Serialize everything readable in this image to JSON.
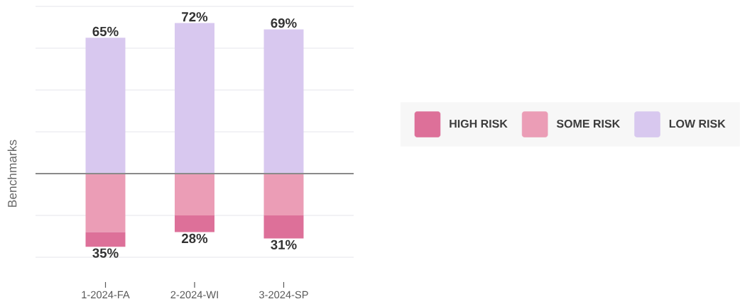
{
  "chart_data": {
    "type": "bar",
    "stacked": true,
    "ylabel": "Benchmarks",
    "categories": [
      "1-2024-FA",
      "2-2024-WI",
      "3-2024-SP"
    ],
    "series": [
      {
        "name": "LOW RISK",
        "color": "#d8c8ef",
        "values": [
          65,
          72,
          69
        ],
        "value_labels": [
          "65%",
          "72%",
          "69%"
        ]
      },
      {
        "name": "SOME RISK",
        "color": "#eb9db6",
        "values": [
          -28,
          -20,
          -20
        ]
      },
      {
        "name": "HIGH RISK",
        "color": "#dd7099",
        "values": [
          -7,
          -8,
          -11
        ]
      }
    ],
    "annotations": [
      {
        "text": "35%",
        "x": "1-2024-FA",
        "y": -35
      },
      {
        "text": "28%",
        "x": "2-2024-WI",
        "y": -28
      },
      {
        "text": "31%",
        "x": "3-2024-SP",
        "y": -31
      }
    ],
    "ylim": [
      -40,
      80
    ],
    "yticks": [
      {
        "value": -40,
        "label": null
      },
      {
        "value": -20,
        "label": null
      },
      {
        "value": 0,
        "label": null
      },
      {
        "value": 20,
        "label": null
      },
      {
        "value": 40,
        "label": null
      },
      {
        "value": 60,
        "label": null
      },
      {
        "value": 80,
        "label": null
      }
    ],
    "ref_lines": [
      {
        "axis": "y",
        "value": 0,
        "color": "#8a8a8a"
      }
    ],
    "grid": "y",
    "legend": "right",
    "tick_labels": "x"
  }
}
